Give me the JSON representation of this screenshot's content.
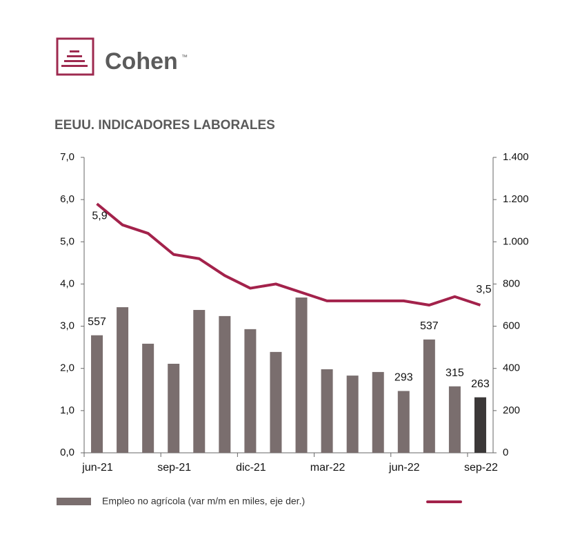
{
  "logo": {
    "text": "Cohen",
    "mark": "™"
  },
  "chart_data": {
    "type": "bar_line",
    "title": "EEUU. INDICADORES LABORALES",
    "categories": [
      "jun-21",
      null,
      null,
      "sep-21",
      null,
      null,
      "dic-21",
      null,
      null,
      "mar-22",
      null,
      null,
      "jun-22",
      null,
      null,
      "sep-22"
    ],
    "series": [
      {
        "name": "Empleo no agrícola (var m/m en miles, eje der.)",
        "type": "bar",
        "axis": "y2",
        "color": "#7a6e6e",
        "last_color": "#3b3838",
        "values": [
          557,
          690,
          517,
          422,
          677,
          648,
          586,
          478,
          736,
          396,
          366,
          383,
          293,
          537,
          315,
          263
        ],
        "value_labels": [
          "557",
          null,
          null,
          null,
          null,
          null,
          null,
          null,
          null,
          null,
          null,
          null,
          "293",
          "537",
          "315",
          "263"
        ]
      },
      {
        "type": "line",
        "color": "#a3224b",
        "values": [
          5.9,
          5.4,
          5.2,
          4.7,
          4.6,
          4.2,
          3.9,
          4.0,
          3.8,
          3.6,
          3.6,
          3.6,
          3.6,
          3.5,
          3.7,
          3.5
        ],
        "value_labels": [
          "5,9",
          null,
          null,
          null,
          null,
          null,
          null,
          null,
          null,
          null,
          null,
          null,
          null,
          null,
          null,
          "3,5"
        ]
      }
    ],
    "ylim": [
      0,
      7
    ],
    "yticks": [
      {
        "value": 0,
        "label": "0,0"
      },
      {
        "value": 1,
        "label": "1,0"
      },
      {
        "value": 2,
        "label": "2,0"
      },
      {
        "value": 3,
        "label": "3,0"
      },
      {
        "value": 4,
        "label": "4,0"
      },
      {
        "value": 5,
        "label": "5,0"
      },
      {
        "value": 6,
        "label": "6,0"
      },
      {
        "value": 7,
        "label": "7,0"
      }
    ],
    "y2lim": [
      0,
      1400
    ],
    "y2ticks": [
      0,
      200,
      400,
      600,
      800,
      {
        "value": 1000,
        "label": "1.000"
      },
      {
        "value": 1200,
        "label": "1.200"
      },
      {
        "value": 1400,
        "label": "1.400"
      }
    ]
  }
}
